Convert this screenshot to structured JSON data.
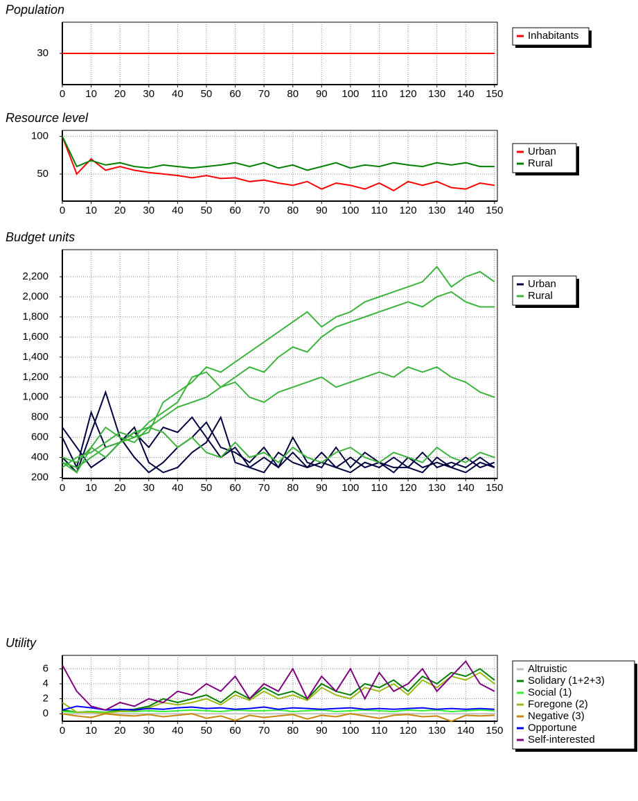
{
  "chart_data": [
    {
      "type": "line",
      "title": "Population",
      "x": [
        0,
        150
      ],
      "xlim": [
        0,
        151
      ],
      "ylim": [
        26,
        34
      ],
      "xticks": [
        0,
        10,
        20,
        30,
        40,
        50,
        60,
        70,
        80,
        90,
        100,
        110,
        120,
        130,
        140,
        150
      ],
      "yticks": [
        30
      ],
      "grid": true,
      "legend": "right",
      "series": [
        {
          "name": "Inhabitants",
          "color": "#ff0000",
          "values": [
            30,
            30
          ]
        }
      ]
    },
    {
      "type": "line",
      "title": "Resource level",
      "x": [
        0,
        5,
        10,
        15,
        20,
        25,
        30,
        35,
        40,
        45,
        50,
        55,
        60,
        65,
        70,
        75,
        80,
        85,
        90,
        95,
        100,
        105,
        110,
        115,
        120,
        125,
        130,
        135,
        140,
        145,
        150
      ],
      "xlim": [
        0,
        151
      ],
      "ylim": [
        14,
        108
      ],
      "xticks": [
        0,
        10,
        20,
        30,
        40,
        50,
        60,
        70,
        80,
        90,
        100,
        110,
        120,
        130,
        140,
        150
      ],
      "yticks": [
        50,
        100
      ],
      "grid": true,
      "legend": "right",
      "series": [
        {
          "name": "Urban",
          "color": "#ff0000",
          "values": [
            100,
            50,
            70,
            55,
            60,
            55,
            52,
            50,
            48,
            45,
            48,
            44,
            45,
            40,
            42,
            38,
            35,
            40,
            30,
            38,
            35,
            30,
            38,
            28,
            40,
            35,
            40,
            32,
            30,
            38,
            35
          ]
        },
        {
          "name": "Rural",
          "color": "#008000",
          "values": [
            100,
            60,
            68,
            62,
            65,
            60,
            58,
            62,
            60,
            58,
            60,
            62,
            65,
            60,
            65,
            58,
            62,
            55,
            60,
            65,
            58,
            62,
            60,
            65,
            62,
            60,
            65,
            62,
            65,
            60,
            60
          ]
        }
      ]
    },
    {
      "type": "line",
      "title": "Budget units",
      "x": [
        0,
        5,
        10,
        15,
        20,
        25,
        30,
        35,
        40,
        45,
        50,
        55,
        60,
        65,
        70,
        75,
        80,
        85,
        90,
        95,
        100,
        105,
        110,
        115,
        120,
        125,
        130,
        135,
        140,
        145,
        150
      ],
      "xlim": [
        0,
        151
      ],
      "ylim": [
        190,
        2470
      ],
      "xticks": [
        0,
        10,
        20,
        30,
        40,
        50,
        60,
        70,
        80,
        90,
        100,
        110,
        120,
        130,
        140,
        150
      ],
      "yticks": [
        200,
        400,
        600,
        800,
        {
          "value": 1000,
          "label": "1,000"
        },
        {
          "value": 1200,
          "label": "1,200"
        },
        {
          "value": 1400,
          "label": "1,400"
        },
        {
          "value": 1600,
          "label": "1,600"
        },
        {
          "value": 1800,
          "label": "1,800"
        },
        {
          "value": 2000,
          "label": "2,000"
        },
        {
          "value": 2200,
          "label": "2,200"
        }
      ],
      "grid": true,
      "legend": "right",
      "series": [
        {
          "name": "Urban",
          "color": "#000040",
          "values": [
            [
              600,
              300,
              850,
              500,
              550,
              650,
              500,
              700,
              650,
              800,
              600,
              400,
              500,
              300,
              400,
              300,
              450,
              300,
              350,
              300,
              400,
              300,
              350,
              250,
              400,
              300,
              350,
              300,
              400,
              300,
              350
            ],
            [
              400,
              250,
              650,
              1050,
              600,
              400,
              250,
              350,
              500,
              600,
              750,
              500,
              450,
              350,
              500,
              300,
              600,
              350,
              300,
              500,
              300,
              450,
              350,
              300,
              300,
              450,
              300,
              350,
              300,
              400,
              300
            ],
            [
              700,
              500,
              300,
              400,
              550,
              700,
              350,
              250,
              300,
              450,
              550,
              800,
              350,
              300,
              250,
              450,
              350,
              300,
              450,
              300,
              250,
              350,
              300,
              400,
              300,
              250,
              400,
              300,
              250,
              350,
              300
            ]
          ]
        },
        {
          "name": "Rural",
          "color": "#3cb43c",
          "values": [
            [
              350,
              300,
              400,
              500,
              550,
              600,
              650,
              950,
              1050,
              1150,
              1300,
              1250,
              1350,
              1450,
              1550,
              1650,
              1750,
              1850,
              1700,
              1800,
              1850,
              1950,
              2000,
              2050,
              2100,
              2150,
              2300,
              2100,
              2200,
              2250,
              2150
            ],
            [
              400,
              350,
              500,
              700,
              600,
              550,
              700,
              800,
              900,
              950,
              1000,
              1100,
              1200,
              1300,
              1250,
              1400,
              1500,
              1450,
              1600,
              1700,
              1750,
              1800,
              1850,
              1900,
              1950,
              1900,
              2000,
              2050,
              1950,
              1900,
              1900
            ],
            [
              300,
              400,
              450,
              550,
              650,
              600,
              750,
              850,
              950,
              1200,
              1250,
              1100,
              1150,
              1000,
              950,
              1050,
              1100,
              1150,
              1200,
              1100,
              1150,
              1200,
              1250,
              1200,
              1300,
              1250,
              1300,
              1200,
              1150,
              1050,
              1000
            ],
            [
              350,
              250,
              500,
              400,
              550,
              650,
              700,
              650,
              500,
              600,
              450,
              400,
              550,
              400,
              450,
              350,
              500,
              400,
              350,
              450,
              500,
              400,
              350,
              450,
              400,
              350,
              500,
              400,
              350,
              450,
              400
            ]
          ]
        }
      ]
    },
    {
      "type": "line",
      "title": "Utility",
      "x": [
        0,
        5,
        10,
        15,
        20,
        25,
        30,
        35,
        40,
        45,
        50,
        55,
        60,
        65,
        70,
        75,
        80,
        85,
        90,
        95,
        100,
        105,
        110,
        115,
        120,
        125,
        130,
        135,
        140,
        145,
        150
      ],
      "xlim": [
        0,
        151
      ],
      "ylim": [
        -1,
        7.8
      ],
      "xticks": [
        0,
        10,
        20,
        30,
        40,
        50,
        60,
        70,
        80,
        90,
        100,
        110,
        120,
        130,
        140,
        150
      ],
      "yticks": [
        0,
        2,
        4,
        6
      ],
      "grid": true,
      "legend": "right",
      "series": [
        {
          "name": "Altruistic",
          "color": "#c0c0c0",
          "values": [
            0,
            0,
            0,
            0,
            0,
            0,
            0,
            0,
            0,
            0,
            0,
            0,
            0,
            0,
            0,
            0,
            0,
            0,
            0,
            0,
            0,
            0,
            0,
            0,
            0,
            0,
            0,
            0,
            0,
            0,
            0
          ]
        },
        {
          "name": "Solidary (1+2+3)",
          "color": "#008000",
          "values": [
            0.5,
            0.2,
            0.3,
            0.2,
            0.5,
            0.6,
            1,
            2,
            1.5,
            2,
            2.5,
            1.5,
            3,
            2,
            3.5,
            2.5,
            3,
            2,
            4,
            3,
            2.5,
            4,
            3.5,
            4.5,
            3,
            5,
            4,
            5.5,
            5,
            6,
            4.5
          ]
        },
        {
          "name": "Social (1)",
          "color": "#33ee33",
          "values": [
            0.3,
            0.2,
            0.3,
            0.2,
            0.3,
            0.3,
            0.4,
            0.3,
            0.4,
            0.5,
            0.4,
            0.3,
            0.5,
            0.4,
            0.4,
            0.5,
            0.3,
            0.4,
            0.5,
            0.3,
            0.4,
            0.5,
            0.4,
            0.3,
            0.5,
            0.4,
            0.5,
            0.3,
            0.4,
            0.5,
            0.4
          ]
        },
        {
          "name": "Foregone (2)",
          "color": "#9abb14",
          "values": [
            1.5,
            0.2,
            0.2,
            0.1,
            0.3,
            0.4,
            0.8,
            1.5,
            1.2,
            1.5,
            2,
            1.2,
            2.5,
            1.8,
            3,
            2,
            2.5,
            1.8,
            3.5,
            2.5,
            2,
            3.5,
            3,
            4,
            2.5,
            4.5,
            3.5,
            5,
            4.5,
            5.5,
            4
          ]
        },
        {
          "name": "Negative (3)",
          "color": "#c8860a",
          "values": [
            0,
            -0.3,
            -0.5,
            0,
            -0.2,
            -0.3,
            -0.1,
            -0.4,
            -0.2,
            0,
            -0.6,
            -0.3,
            -0.9,
            -0.2,
            -0.5,
            -0.3,
            -0.1,
            -0.7,
            -0.2,
            -0.4,
            0,
            -0.3,
            -0.6,
            -0.2,
            -0.1,
            -0.4,
            -0.3,
            -1,
            -0.2,
            -0.3,
            -0.2
          ]
        },
        {
          "name": "Opportune",
          "color": "#0000ff",
          "values": [
            0.5,
            1,
            0.8,
            0.5,
            0.6,
            0.5,
            0.7,
            0.6,
            0.8,
            0.9,
            0.7,
            0.8,
            0.6,
            0.7,
            0.9,
            0.6,
            0.8,
            0.7,
            0.6,
            0.7,
            0.8,
            0.6,
            0.7,
            0.6,
            0.7,
            0.8,
            0.6,
            0.7,
            0.6,
            0.7,
            0.6
          ]
        },
        {
          "name": "Self-interested",
          "color": "#800080",
          "values": [
            6.5,
            3,
            1,
            0.5,
            1.5,
            1,
            2,
            1.5,
            3,
            2.5,
            4,
            3,
            5,
            2,
            4,
            3,
            6,
            2,
            5,
            3,
            6,
            2,
            5.5,
            3,
            4,
            6,
            3,
            5,
            7,
            4,
            3
          ]
        }
      ]
    }
  ]
}
